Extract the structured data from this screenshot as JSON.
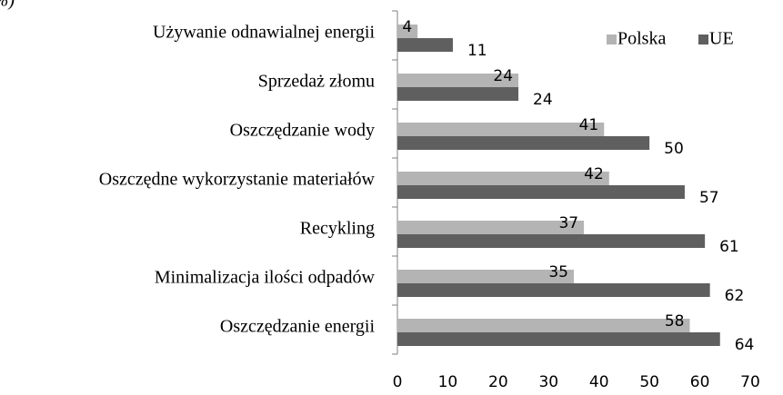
{
  "chart_data": {
    "type": "bar",
    "orientation": "horizontal",
    "subtitle": "(%)",
    "categories": [
      "Używanie odnawialnej energii",
      "Sprzedaż złomu",
      "Oszczędzanie wody",
      "Oszczędne wykorzystanie materiałów",
      "Recykling",
      "Minimalizacja ilości odpadów",
      "Oszczędzanie energii"
    ],
    "series": [
      {
        "name": "Polska",
        "color": "#b4b4b4",
        "values": [
          4,
          24,
          41,
          42,
          37,
          35,
          58
        ]
      },
      {
        "name": "UE",
        "color": "#5f5f5f",
        "values": [
          11,
          24,
          50,
          57,
          61,
          62,
          64
        ]
      }
    ],
    "xlim": [
      0,
      70
    ],
    "xticks": [
      0,
      10,
      20,
      30,
      40,
      50,
      60,
      70
    ],
    "grid": false,
    "legend": "top-right"
  }
}
